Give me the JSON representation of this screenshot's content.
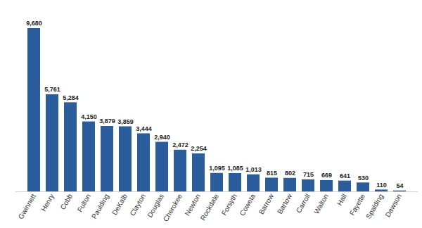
{
  "chart_data": {
    "type": "bar",
    "categories": [
      "Gwinnett",
      "Henry",
      "Cobb",
      "Fulton",
      "Paulding",
      "DeKalb",
      "Clayton",
      "Douglas",
      "Cherokee",
      "Newton",
      "Rockdale",
      "Forsyth",
      "Coweta",
      "Barrow",
      "Bartow",
      "Carroll",
      "Walton",
      "Hall",
      "Fayette",
      "Spalding",
      "Dawson"
    ],
    "values": [
      9680,
      5761,
      5284,
      4150,
      3879,
      3859,
      3444,
      2940,
      2472,
      2254,
      1095,
      1085,
      1013,
      815,
      802,
      715,
      669,
      641,
      530,
      110,
      54
    ],
    "value_labels": [
      "9,680",
      "5,761",
      "5,284",
      "4,150",
      "3,879",
      "3,859",
      "3,444",
      "2,940",
      "2,472",
      "2,254",
      "1,095",
      "1,085",
      "1,013",
      "815",
      "802",
      "715",
      "669",
      "641",
      "530",
      "110",
      "54"
    ],
    "color": "#2b5c9b",
    "ylim": [
      0,
      9680
    ],
    "grid": false,
    "data_labels": true,
    "tick_labels": "x"
  }
}
